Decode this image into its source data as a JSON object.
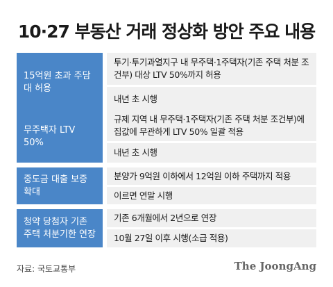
{
  "title": "10·27 부동산 거래 정상화 방안 주요 내용",
  "rows": [
    {
      "label": "15억원 초과 주담대 허용",
      "items": [
        "투기·투기과열지구 내 무주택·1주택자(기존 주택 처분 조건부) 대상 LTV 50%까지 허용",
        "내년 초 시행"
      ]
    },
    {
      "label": "무주택자 LTV 50%",
      "items": [
        "규제 지역 내 무주택·1주택자(기존 주택 처분 조건부)에 집값에 무관하게 LTV 50% 일괄 적용",
        "내년 초 시행"
      ]
    },
    {
      "label": "중도금 대출 보증 확대",
      "items": [
        "분양가 9억원 이하에서 12억원 이하 주택까지 적용",
        "이르면 연말 시행"
      ]
    },
    {
      "label": "청약 당첨자 기존 주택 처분기한 연장",
      "items": [
        "기존 6개월에서 2년으로 연장",
        "10월 27일 이후 시행(소급 적용)"
      ]
    }
  ],
  "source": "자료: 국토교통부",
  "brand": "The JoongAng",
  "colors": {
    "label_bg": "#4a86c8",
    "cell_bg": "#f0f0f0"
  }
}
